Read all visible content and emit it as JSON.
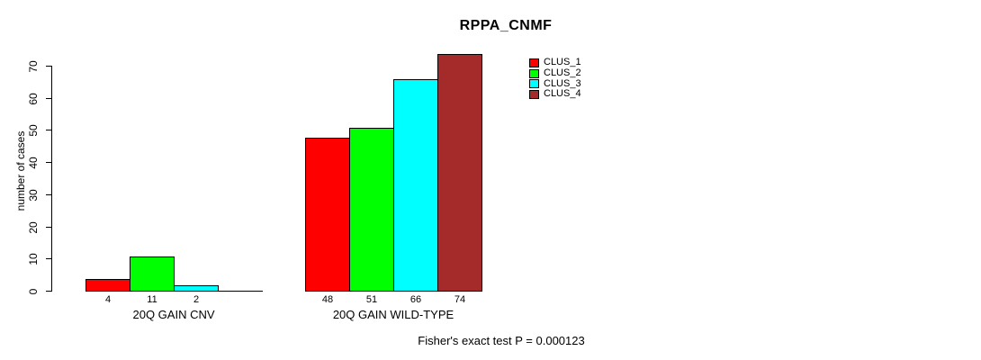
{
  "chart_data": {
    "type": "bar",
    "title": "RPPA_CNMF",
    "xlabel": "",
    "ylabel": "number of cases",
    "ylim": [
      0,
      70
    ],
    "yticks": [
      0,
      10,
      20,
      30,
      40,
      50,
      60,
      70
    ],
    "grid": false,
    "categories": [
      "20Q GAIN CNV",
      "20Q GAIN WILD-TYPE"
    ],
    "series": [
      {
        "name": "CLUS_1",
        "color": "#FF0000",
        "values": [
          4,
          48
        ]
      },
      {
        "name": "CLUS_2",
        "color": "#00FF00",
        "values": [
          11,
          51
        ]
      },
      {
        "name": "CLUS_3",
        "color": "#00FFFF",
        "values": [
          2,
          66
        ]
      },
      {
        "name": "CLUS_4",
        "color": "#A52A2A",
        "values": [
          0,
          74
        ]
      }
    ],
    "bar_value_labels": [
      [
        "4",
        "11",
        "2",
        null
      ],
      [
        "48",
        "51",
        "66",
        "74"
      ]
    ],
    "legend": {
      "position": "top-right",
      "entries": [
        "CLUS_1",
        "CLUS_2",
        "CLUS_3",
        "CLUS_4"
      ]
    },
    "annotation": "Fisher's exact test P = 0.000123"
  }
}
